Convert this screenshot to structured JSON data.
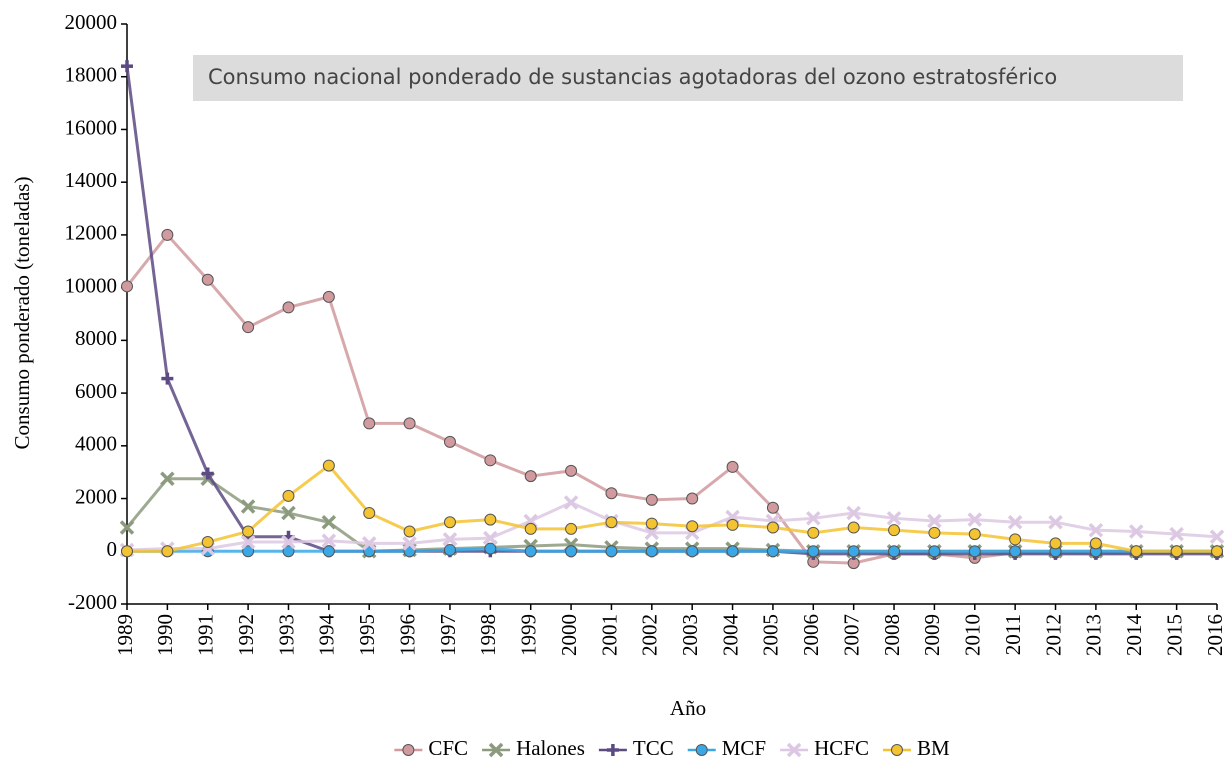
{
  "chart_data": {
    "type": "line",
    "title": "Consumo nacional ponderado de sustancias agotadoras del ozono estratosférico",
    "x_label": "Año",
    "y_label": "Consumo ponderado (toneladas)",
    "categories": [
      "1989",
      "1990",
      "1991",
      "1992",
      "1993",
      "1994",
      "1995",
      "1996",
      "1997",
      "1998",
      "1999",
      "2000",
      "2001",
      "2002",
      "2003",
      "2004",
      "2005",
      "2006",
      "2007",
      "2008",
      "2009",
      "2010",
      "2011",
      "2012",
      "2013",
      "2014",
      "2015",
      "2016"
    ],
    "ylim": [
      -2000,
      20000
    ],
    "yticks": [
      -2000,
      0,
      2000,
      4000,
      6000,
      8000,
      10000,
      12000,
      14000,
      16000,
      18000,
      20000
    ],
    "legend": "bottom",
    "series": [
      {
        "name": "CFC",
        "color": "#d19a9e",
        "marker": "circle",
        "values": [
          10050,
          12000,
          10300,
          8500,
          9250,
          9650,
          4850,
          4850,
          4150,
          3450,
          2850,
          3050,
          2200,
          1950,
          2000,
          3200,
          1650,
          -400,
          -450,
          -100,
          -100,
          -250,
          -50,
          -50,
          -50,
          -50,
          -50,
          -50
        ]
      },
      {
        "name": "Halones",
        "color": "#8c9b7e",
        "marker": "x",
        "values": [
          900,
          2750,
          2750,
          1700,
          1450,
          1100,
          0,
          50,
          100,
          150,
          200,
          250,
          150,
          100,
          100,
          100,
          50,
          0,
          0,
          0,
          0,
          0,
          0,
          0,
          0,
          0,
          0,
          0
        ]
      },
      {
        "name": "TCC",
        "color": "#5c4a82",
        "marker": "plus",
        "values": [
          18400,
          6550,
          2950,
          550,
          550,
          0,
          0,
          0,
          0,
          0,
          0,
          0,
          0,
          0,
          0,
          0,
          0,
          -100,
          -100,
          -100,
          -100,
          -100,
          -100,
          -100,
          -100,
          -100,
          -100,
          -100
        ]
      },
      {
        "name": "MCF",
        "color": "#3aa8e6",
        "marker": "circle",
        "values": [
          0,
          0,
          0,
          0,
          0,
          0,
          0,
          0,
          50,
          100,
          0,
          0,
          0,
          0,
          0,
          0,
          0,
          0,
          0,
          0,
          0,
          0,
          0,
          0,
          0,
          0,
          0,
          0
        ]
      },
      {
        "name": "HCFC",
        "color": "#dcc8e2",
        "marker": "x",
        "values": [
          50,
          100,
          100,
          350,
          350,
          400,
          300,
          300,
          450,
          500,
          1150,
          1850,
          1150,
          700,
          700,
          1300,
          1150,
          1250,
          1450,
          1250,
          1150,
          1200,
          1100,
          1100,
          800,
          750,
          650,
          550
        ]
      },
      {
        "name": "BM",
        "color": "#f4c331",
        "marker": "circle",
        "values": [
          0,
          0,
          350,
          750,
          2100,
          3250,
          1450,
          750,
          1100,
          1200,
          850,
          850,
          1100,
          1050,
          950,
          1000,
          900,
          700,
          900,
          800,
          700,
          650,
          450,
          300,
          300,
          0,
          0,
          0
        ]
      }
    ]
  }
}
